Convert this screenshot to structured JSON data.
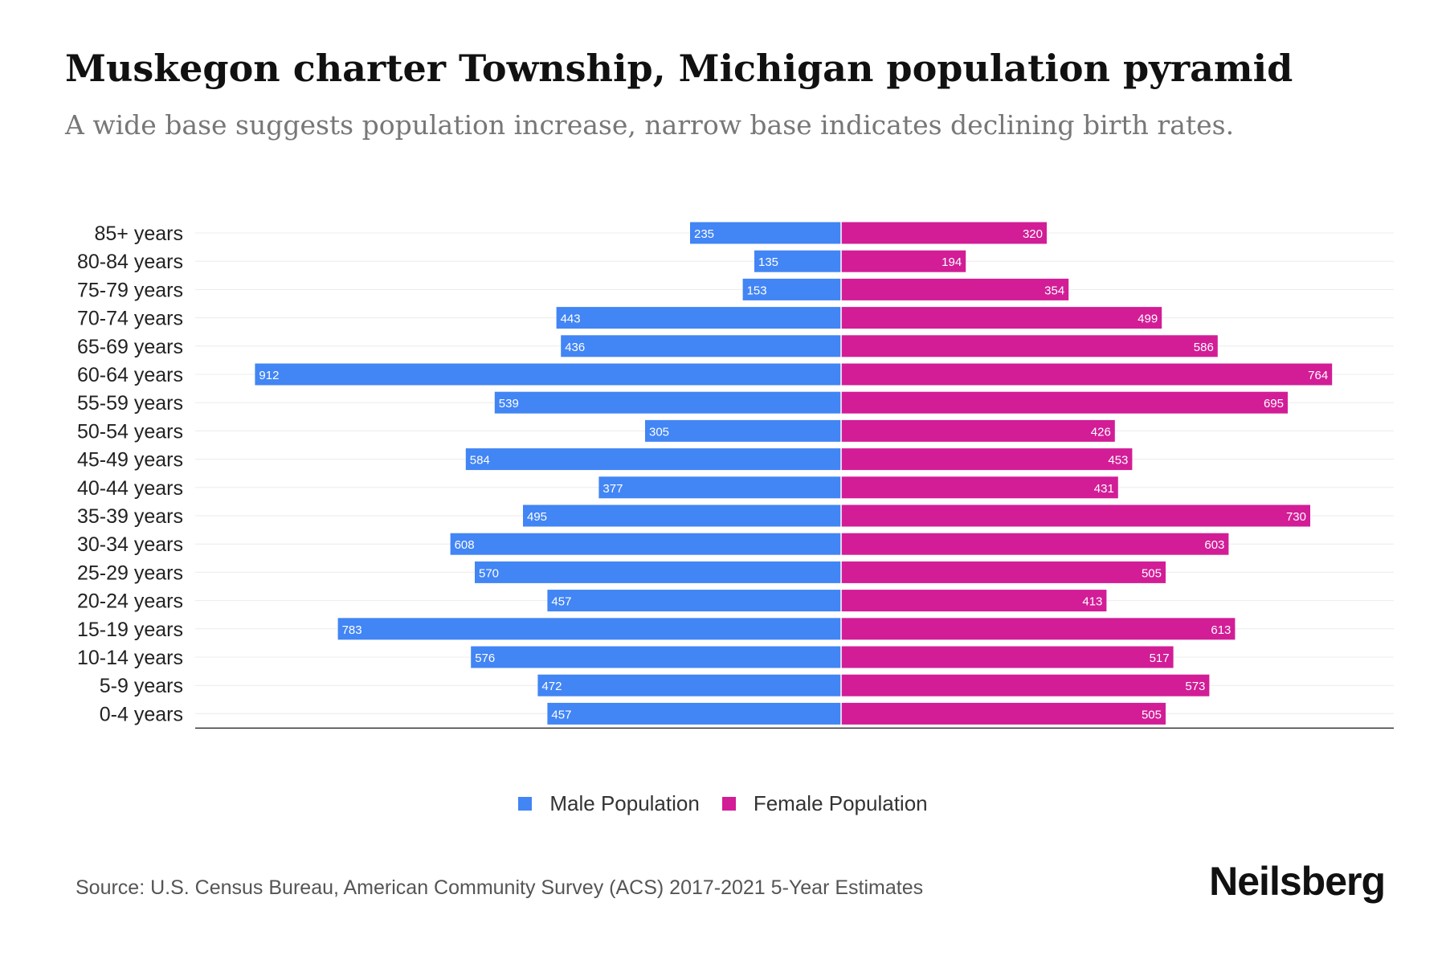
{
  "title": "Muskegon charter Township, Michigan population pyramid",
  "subtitle": "A wide base suggests population increase, narrow base indicates declining birth rates.",
  "source": "Source: U.S. Census Bureau, American Community Survey (ACS) 2017-2021 5-Year Estimates",
  "brand": "Neilsberg",
  "colors": {
    "male": "#4285f4",
    "female": "#d21d97"
  },
  "chart_data": {
    "type": "bar",
    "orientation": "horizontal",
    "categories": [
      "85+ years",
      "80-84 years",
      "75-79 years",
      "70-74 years",
      "65-69 years",
      "60-64 years",
      "55-59 years",
      "50-54 years",
      "45-49 years",
      "40-44 years",
      "35-39 years",
      "30-34 years",
      "25-29 years",
      "20-24 years",
      "15-19 years",
      "10-14 years",
      "5-9 years",
      "0-4 years"
    ],
    "series": [
      {
        "name": "Male Population",
        "values": [
          235,
          135,
          153,
          443,
          436,
          912,
          539,
          305,
          584,
          377,
          495,
          608,
          570,
          457,
          783,
          576,
          472,
          457
        ]
      },
      {
        "name": "Female Population",
        "values": [
          320,
          194,
          354,
          499,
          586,
          764,
          695,
          426,
          453,
          431,
          730,
          603,
          505,
          413,
          613,
          517,
          573,
          505
        ]
      }
    ],
    "xlim": [
      -1005,
      860
    ],
    "grid": true,
    "legend": "bottom-center"
  }
}
